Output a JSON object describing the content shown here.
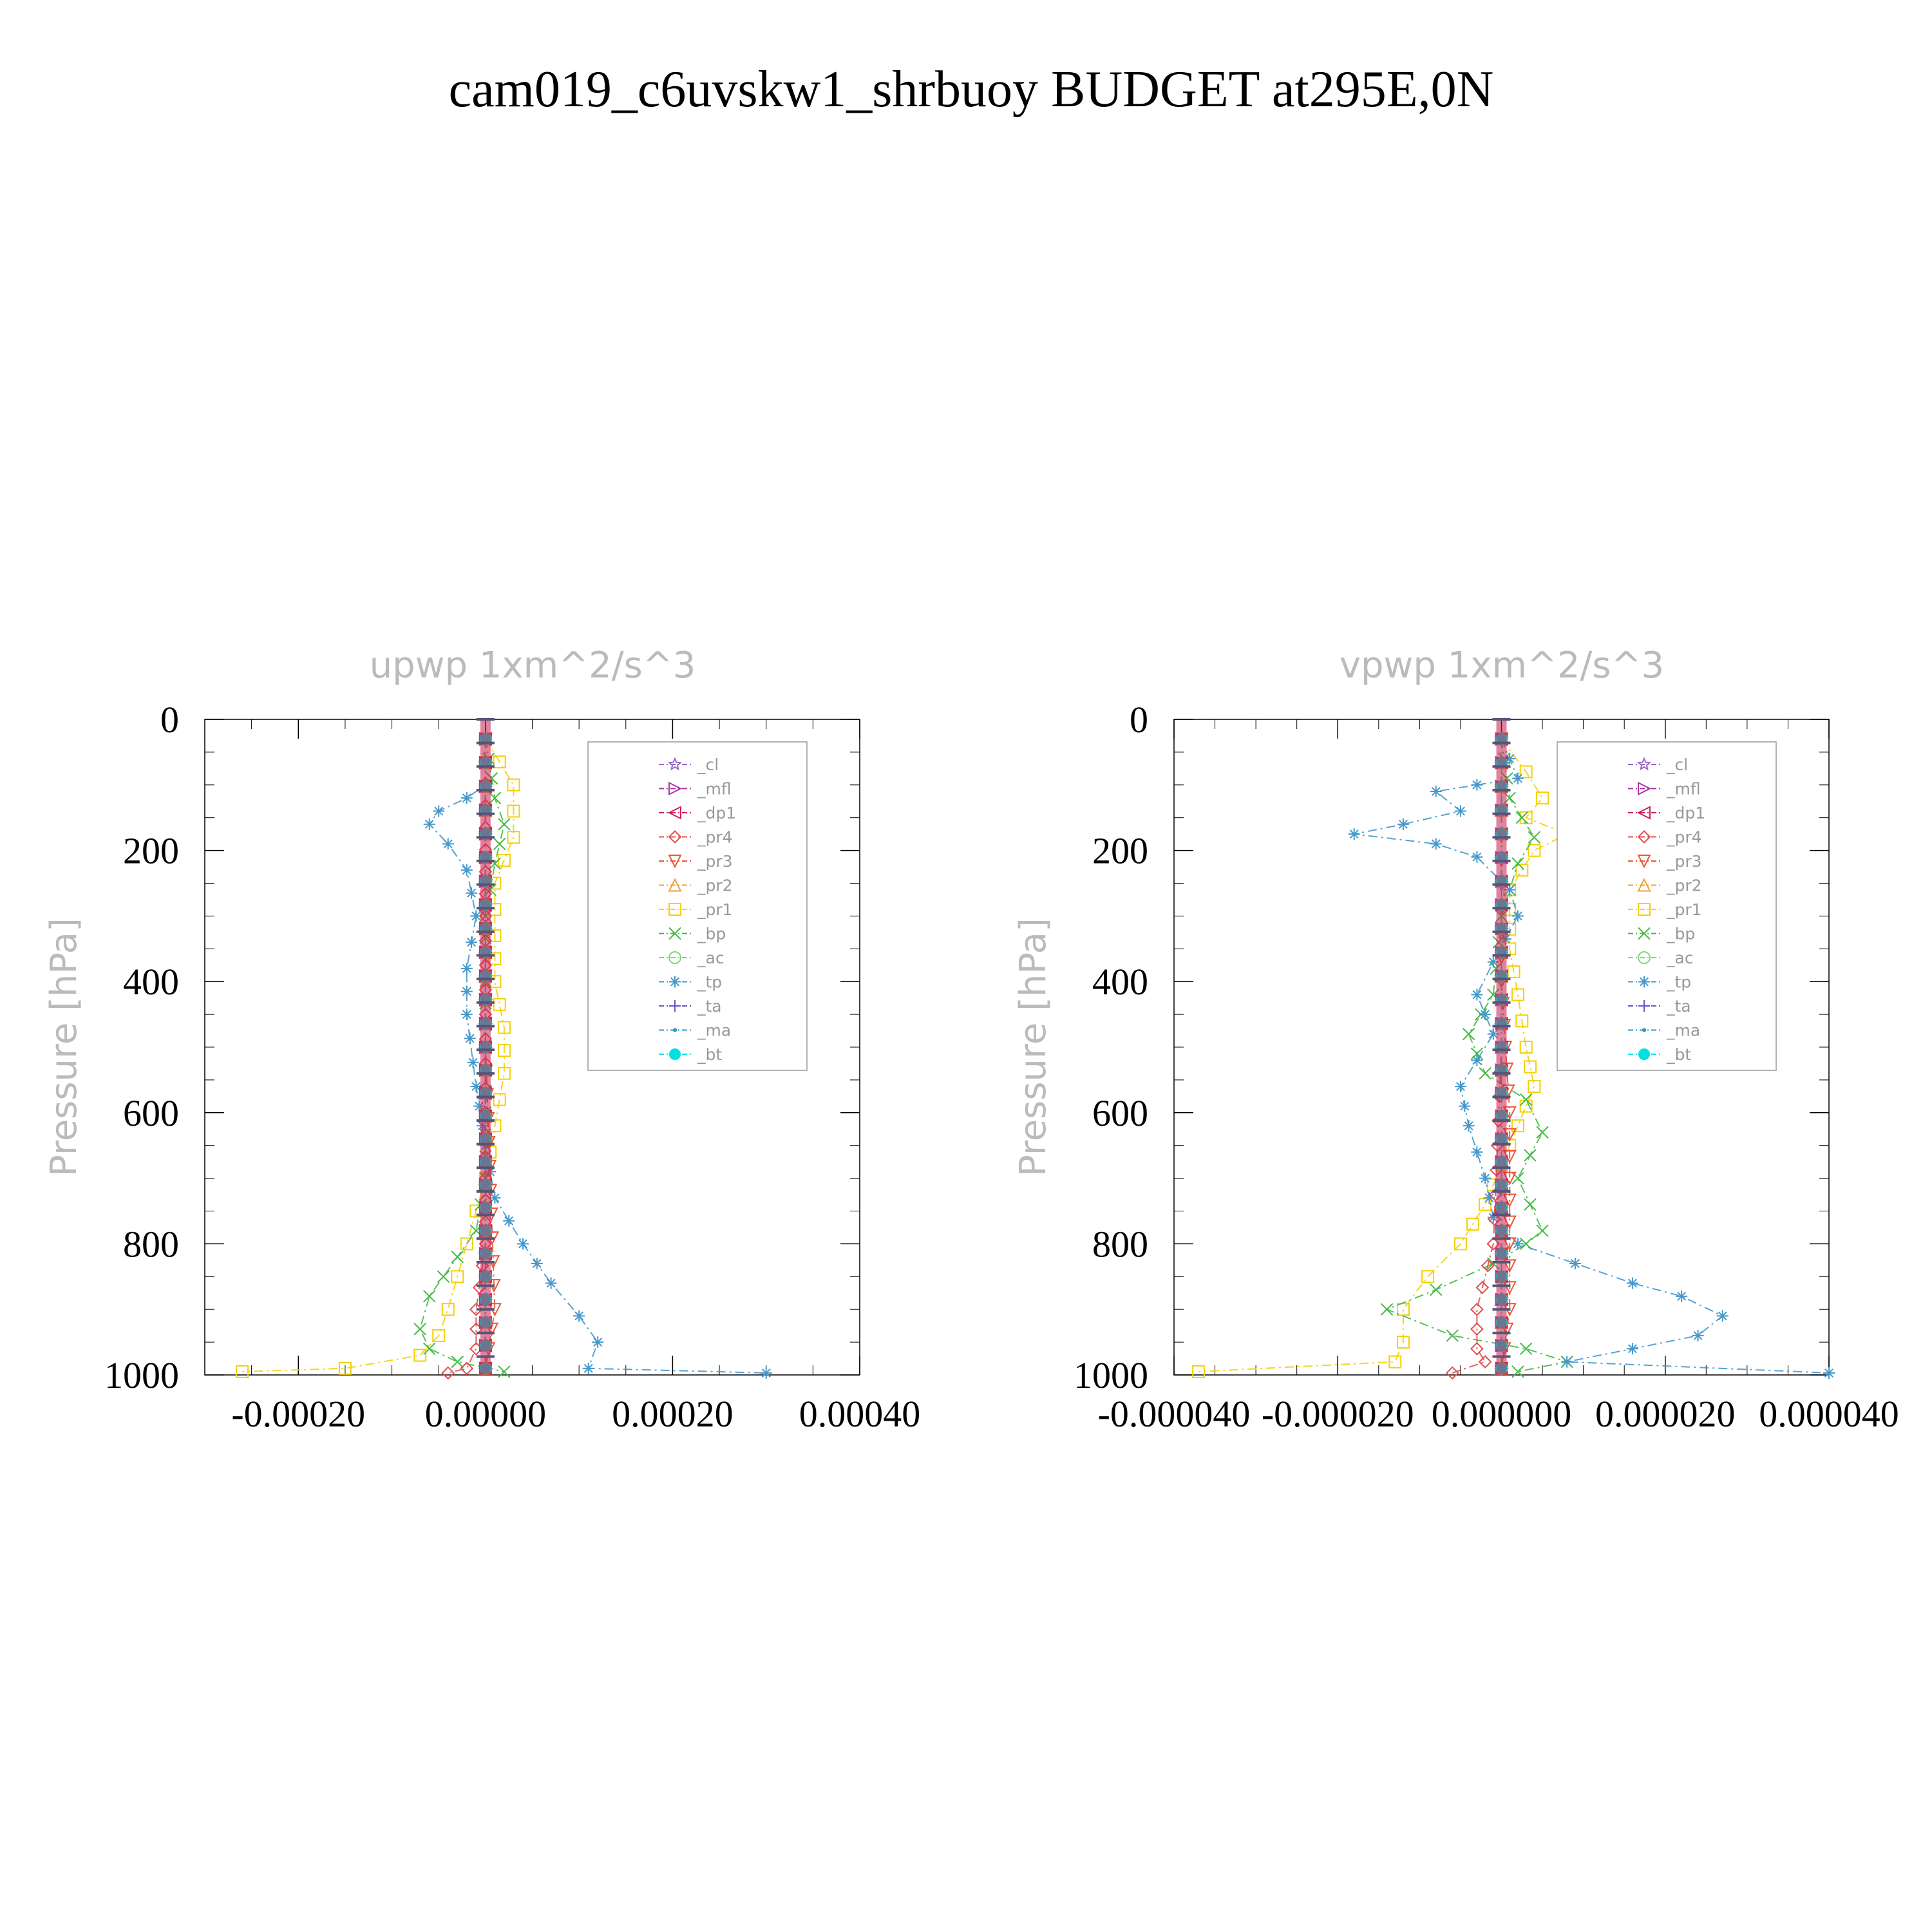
{
  "figure": {
    "title": "cam019_c6uvskw1_shrbuoy  BUDGET at295E,0N"
  },
  "legend_entries": [
    {
      "name": "_cl",
      "color": "#9966cc",
      "marker": "star"
    },
    {
      "name": "_mfl",
      "color": "#aa33aa",
      "marker": "tri-right"
    },
    {
      "name": "_dp1",
      "color": "#cc2255",
      "marker": "tri-left"
    },
    {
      "name": "_pr4",
      "color": "#e05050",
      "marker": "diamond"
    },
    {
      "name": "_pr3",
      "color": "#ee5533",
      "marker": "tri-down"
    },
    {
      "name": "_pr2",
      "color": "#f0a030",
      "marker": "tri-up"
    },
    {
      "name": "_pr1",
      "color": "#f5d000",
      "marker": "square"
    },
    {
      "name": "_bp",
      "color": "#44bb44",
      "marker": "x"
    },
    {
      "name": "_ac",
      "color": "#77dd77",
      "marker": "circle"
    },
    {
      "name": "_tp",
      "color": "#4499cc",
      "marker": "asterisk"
    },
    {
      "name": "_ta",
      "color": "#6655cc",
      "marker": "plus"
    },
    {
      "name": "_ma",
      "color": "#3399bb",
      "marker": "dot"
    },
    {
      "name": "_bt",
      "color": "#00e0e0",
      "marker": "filled-circle"
    }
  ],
  "chart_data": [
    {
      "type": "line",
      "title": "upwp   1xm^2/s^3",
      "ylabel": "Pressure [hPa]",
      "xlabel": "",
      "xlim": [
        -0.0003,
        0.0004
      ],
      "ylim": [
        1000,
        0
      ],
      "y_inverted": true,
      "xticks": [
        -0.0002,
        0.0,
        0.0002,
        0.0004
      ],
      "xtick_labels": [
        "-0.00020",
        "0.00000",
        "0.00020",
        "0.00040"
      ],
      "yticks": [
        0,
        200,
        400,
        600,
        800,
        1000
      ],
      "ytick_labels": [
        "0",
        "200",
        "400",
        "600",
        "800",
        "1000"
      ],
      "legend_position": "top-right",
      "series": [
        {
          "name": "_pr1",
          "points": [
            [
              0,
              30
            ],
            [
              3e-05,
              100
            ],
            [
              3e-05,
              140
            ],
            [
              3e-05,
              180
            ],
            [
              1e-05,
              250
            ],
            [
              1e-05,
              330
            ],
            [
              1e-05,
              400
            ],
            [
              2e-05,
              470
            ],
            [
              2e-05,
              540
            ],
            [
              1e-05,
              620
            ],
            [
              0,
              700
            ],
            [
              -1e-05,
              750
            ],
            [
              -2e-05,
              800
            ],
            [
              -3e-05,
              850
            ],
            [
              -4e-05,
              900
            ],
            [
              -5e-05,
              940
            ],
            [
              -7e-05,
              970
            ],
            [
              -0.00015,
              990
            ],
            [
              -0.00026,
              995
            ]
          ]
        },
        {
          "name": "_bp",
          "points": [
            [
              0,
              30
            ],
            [
              1e-05,
              120
            ],
            [
              2e-05,
              160
            ],
            [
              1e-05,
              220
            ],
            [
              0,
              300
            ],
            [
              0,
              500
            ],
            [
              0,
              700
            ],
            [
              -1e-05,
              780
            ],
            [
              -3e-05,
              820
            ],
            [
              -6e-05,
              880
            ],
            [
              -7e-05,
              930
            ],
            [
              -6e-05,
              960
            ],
            [
              -3e-05,
              980
            ],
            [
              2e-05,
              995
            ]
          ]
        },
        {
          "name": "_tp",
          "points": [
            [
              0,
              30
            ],
            [
              0,
              100
            ],
            [
              -2e-05,
              120
            ],
            [
              -5e-05,
              140
            ],
            [
              -6e-05,
              160
            ],
            [
              -4e-05,
              190
            ],
            [
              -2e-05,
              230
            ],
            [
              -1e-05,
              300
            ],
            [
              -2e-05,
              380
            ],
            [
              -2e-05,
              450
            ],
            [
              -1e-05,
              560
            ],
            [
              0,
              650
            ],
            [
              1e-05,
              730
            ],
            [
              4e-05,
              800
            ],
            [
              7e-05,
              860
            ],
            [
              0.0001,
              910
            ],
            [
              0.00012,
              950
            ],
            [
              0.00011,
              990
            ],
            [
              0.0003,
              997
            ]
          ]
        },
        {
          "name": "_pr4",
          "points": [
            [
              0,
              30
            ],
            [
              0,
              300
            ],
            [
              0,
              600
            ],
            [
              0,
              800
            ],
            [
              -1e-05,
              900
            ],
            [
              -1e-05,
              960
            ],
            [
              -2e-05,
              990
            ],
            [
              -4e-05,
              997
            ]
          ]
        },
        {
          "name": "_pr3",
          "points": [
            [
              0,
              30
            ],
            [
              0,
              500
            ],
            [
              1e-05,
              900
            ],
            [
              0,
              990
            ]
          ]
        },
        {
          "name": "_pr2",
          "points": [
            [
              0,
              30
            ],
            [
              0,
              500
            ],
            [
              0,
              990
            ]
          ]
        },
        {
          "name": "_dp1",
          "points": [
            [
              0,
              30
            ],
            [
              0,
              500
            ],
            [
              0,
              990
            ]
          ]
        },
        {
          "name": "_ac",
          "points": [
            [
              0,
              30
            ],
            [
              0,
              500
            ],
            [
              0,
              990
            ]
          ]
        },
        {
          "name": "_ta",
          "points": [
            [
              0,
              30
            ],
            [
              0,
              500
            ],
            [
              0,
              990
            ]
          ]
        },
        {
          "name": "_ma",
          "points": [
            [
              0,
              30
            ],
            [
              0,
              500
            ],
            [
              0,
              990
            ]
          ]
        },
        {
          "name": "_cl",
          "points": [
            [
              0,
              30
            ],
            [
              0,
              500
            ],
            [
              0,
              990
            ]
          ]
        },
        {
          "name": "_mfl",
          "points": [
            [
              0,
              30
            ],
            [
              0,
              500
            ],
            [
              0,
              990
            ]
          ]
        },
        {
          "name": "_bt",
          "points": [
            [
              0,
              30
            ],
            [
              0,
              500
            ],
            [
              0,
              990
            ]
          ]
        }
      ]
    },
    {
      "type": "line",
      "title": "vpwp   1xm^2/s^3",
      "ylabel": "Pressure [hPa]",
      "xlabel": "",
      "xlim": [
        -4e-05,
        4e-05
      ],
      "ylim": [
        1000,
        0
      ],
      "y_inverted": true,
      "xticks": [
        -4e-05,
        -2e-05,
        0.0,
        2e-05,
        4e-05
      ],
      "xtick_labels": [
        "-0.000040",
        "-0.000020",
        "0.000000",
        "0.000020",
        "0.000040"
      ],
      "yticks": [
        0,
        200,
        400,
        600,
        800,
        1000
      ],
      "ytick_labels": [
        "0",
        "200",
        "400",
        "600",
        "800",
        "1000"
      ],
      "legend_position": "top-right",
      "series": [
        {
          "name": "_pr1",
          "points": [
            [
              0,
              30
            ],
            [
              3e-06,
              80
            ],
            [
              5e-06,
              120
            ],
            [
              3e-06,
              150
            ],
            [
              8e-06,
              175
            ],
            [
              4e-06,
              200
            ],
            [
              1e-06,
              260
            ],
            [
              1e-06,
              350
            ],
            [
              2e-06,
              420
            ],
            [
              3e-06,
              500
            ],
            [
              4e-06,
              560
            ],
            [
              2e-06,
              620
            ],
            [
              0,
              680
            ],
            [
              -2e-06,
              740
            ],
            [
              -5e-06,
              800
            ],
            [
              -9e-06,
              850
            ],
            [
              -1.2e-05,
              900
            ],
            [
              -1.2e-05,
              950
            ],
            [
              -1.3e-05,
              980
            ],
            [
              -3.7e-05,
              995
            ]
          ]
        },
        {
          "name": "_bp",
          "points": [
            [
              0,
              30
            ],
            [
              1e-06,
              120
            ],
            [
              4e-06,
              180
            ],
            [
              2e-06,
              220
            ],
            [
              0,
              300
            ],
            [
              -1e-06,
              420
            ],
            [
              -4e-06,
              480
            ],
            [
              -2e-06,
              540
            ],
            [
              3e-06,
              580
            ],
            [
              5e-06,
              630
            ],
            [
              2e-06,
              700
            ],
            [
              5e-06,
              780
            ],
            [
              3e-06,
              800
            ],
            [
              -1e-06,
              830
            ],
            [
              -8e-06,
              870
            ],
            [
              -1.4e-05,
              900
            ],
            [
              -6e-06,
              940
            ],
            [
              3e-06,
              960
            ],
            [
              8e-06,
              980
            ],
            [
              2e-06,
              995
            ]
          ]
        },
        {
          "name": "_tp",
          "points": [
            [
              0,
              30
            ],
            [
              2e-06,
              90
            ],
            [
              -3e-06,
              100
            ],
            [
              -8e-06,
              110
            ],
            [
              -5e-06,
              140
            ],
            [
              -1.2e-05,
              160
            ],
            [
              -1.8e-05,
              175
            ],
            [
              -8e-06,
              190
            ],
            [
              -3e-06,
              210
            ],
            [
              1e-06,
              260
            ],
            [
              2e-06,
              300
            ],
            [
              -1e-06,
              370
            ],
            [
              -3e-06,
              420
            ],
            [
              -1e-06,
              480
            ],
            [
              -3e-06,
              520
            ],
            [
              -5e-06,
              560
            ],
            [
              -4e-06,
              620
            ],
            [
              -2e-06,
              700
            ],
            [
              -1e-06,
              760
            ],
            [
              2e-06,
              800
            ],
            [
              9e-06,
              830
            ],
            [
              1.6e-05,
              860
            ],
            [
              2.2e-05,
              880
            ],
            [
              2.7e-05,
              910
            ],
            [
              2.4e-05,
              940
            ],
            [
              1.6e-05,
              960
            ],
            [
              8e-06,
              980
            ],
            [
              4e-05,
              997
            ]
          ]
        },
        {
          "name": "_pr4",
          "points": [
            [
              0,
              30
            ],
            [
              0,
              500
            ],
            [
              -1e-06,
              800
            ],
            [
              -3e-06,
              900
            ],
            [
              -3e-06,
              960
            ],
            [
              -2e-06,
              980
            ],
            [
              -6e-06,
              997
            ]
          ]
        },
        {
          "name": "_pr3",
          "points": [
            [
              0,
              30
            ],
            [
              0,
              400
            ],
            [
              1e-06,
              600
            ],
            [
              1e-06,
              800
            ],
            [
              1e-06,
              900
            ],
            [
              0,
              990
            ]
          ]
        },
        {
          "name": "_pr2",
          "points": [
            [
              0,
              30
            ],
            [
              0,
              500
            ],
            [
              0,
              990
            ]
          ]
        },
        {
          "name": "_dp1",
          "points": [
            [
              0,
              30
            ],
            [
              0,
              500
            ],
            [
              0,
              990
            ]
          ]
        },
        {
          "name": "_ac",
          "points": [
            [
              0,
              30
            ],
            [
              0,
              500
            ],
            [
              0,
              990
            ]
          ]
        },
        {
          "name": "_ta",
          "points": [
            [
              0,
              30
            ],
            [
              0,
              500
            ],
            [
              0,
              990
            ]
          ]
        },
        {
          "name": "_ma",
          "points": [
            [
              0,
              30
            ],
            [
              0,
              500
            ],
            [
              0,
              990
            ]
          ]
        },
        {
          "name": "_cl",
          "points": [
            [
              0,
              30
            ],
            [
              0,
              500
            ],
            [
              0,
              990
            ]
          ]
        },
        {
          "name": "_mfl",
          "points": [
            [
              0,
              30
            ],
            [
              0,
              500
            ],
            [
              0,
              990
            ]
          ]
        },
        {
          "name": "_bt",
          "points": [
            [
              0,
              30
            ],
            [
              0,
              500
            ],
            [
              0,
              990
            ]
          ]
        }
      ]
    }
  ]
}
